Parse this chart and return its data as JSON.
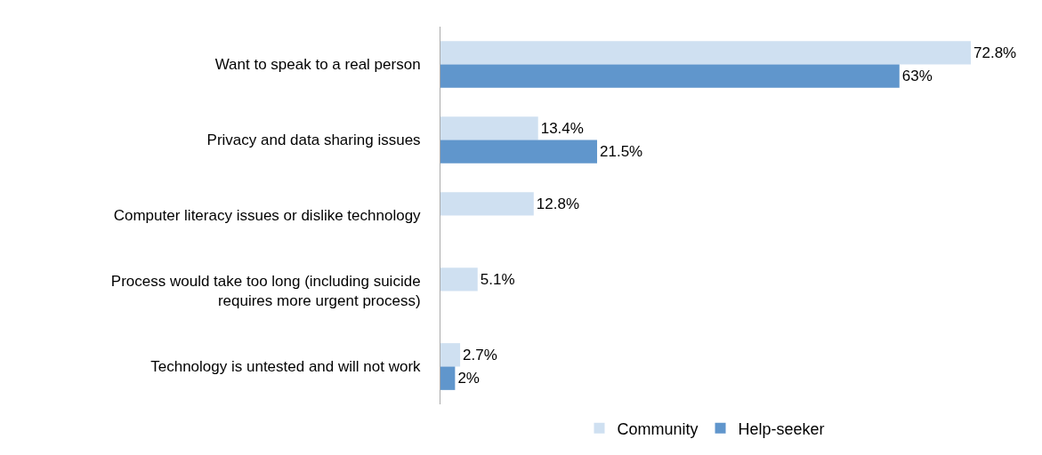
{
  "chart_data": {
    "type": "bar",
    "orientation": "horizontal",
    "categories": [
      "Want to speak to a real person",
      "Privacy and data sharing issues",
      "Computer literacy issues or dislike technology",
      "Process would take too long (including suicide\nrequires more urgent process)",
      "Technology is untested and will not work"
    ],
    "series": [
      {
        "name": "Community",
        "color": "#cfe0f1",
        "values": [
          72.8,
          13.4,
          12.8,
          5.1,
          2.7
        ],
        "value_labels": [
          "72.8%",
          "13.4%",
          "12.8%",
          "5.1%",
          "2.7%"
        ]
      },
      {
        "name": "Help-seeker",
        "color": "#6096cc",
        "values": [
          63,
          21.5,
          null,
          null,
          2
        ],
        "value_labels": [
          "63%",
          "21.5%",
          null,
          null,
          "2%"
        ]
      }
    ],
    "legend": "bottom",
    "tick_labels": "y"
  }
}
